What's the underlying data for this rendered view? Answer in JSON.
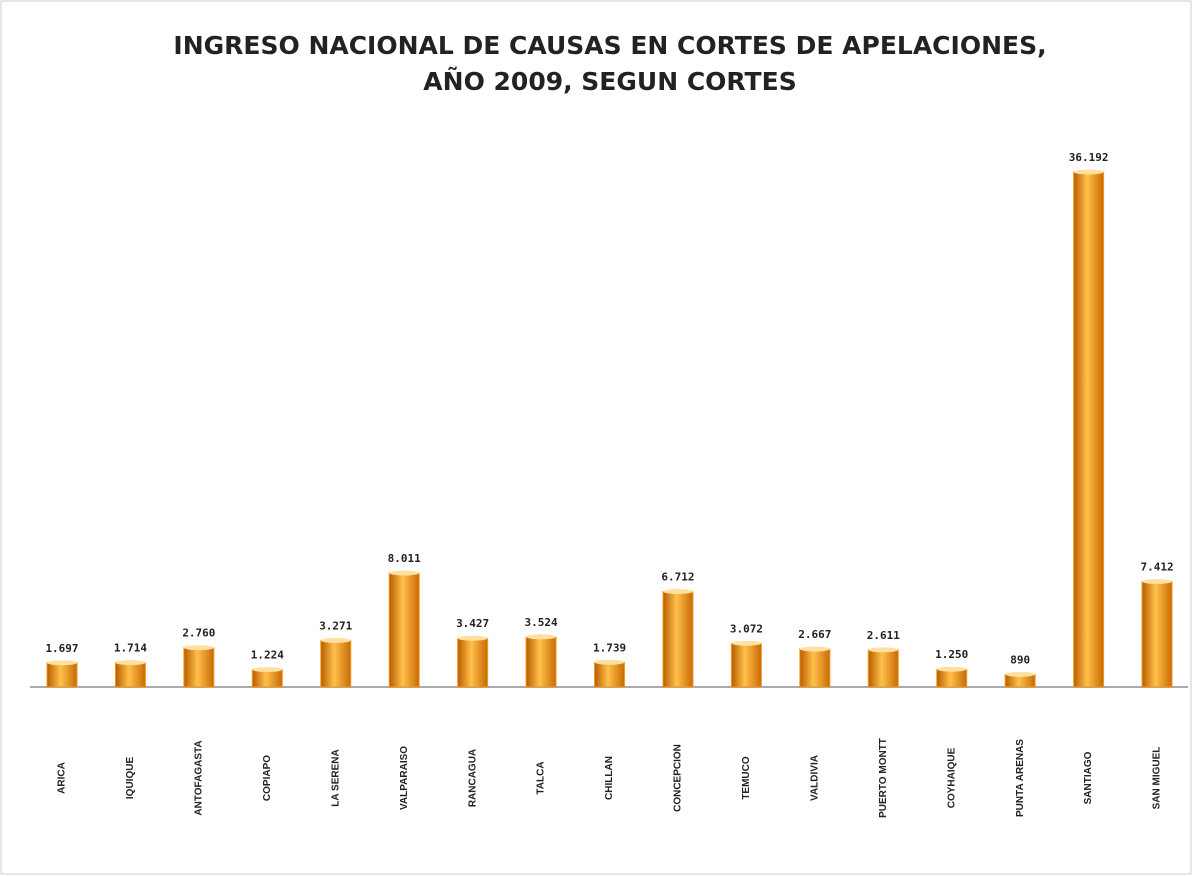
{
  "chart_data": {
    "type": "bar",
    "title": [
      "INGRESO NACIONAL DE CAUSAS EN CORTES DE APELACIONES,",
      "AÑO 2009, SEGUN CORTES"
    ],
    "categories": [
      "ARICA",
      "IQUIQUE",
      "ANTOFAGASTA",
      "COPIAPO",
      "LA SERENA",
      "VALPARAISO",
      "RANCAGUA",
      "TALCA",
      "CHILLAN",
      "CONCEPCION",
      "TEMUCO",
      "VALDIVIA",
      "PUERTO MONTT",
      "COYHAIQUE",
      "PUNTA ARENAS",
      "SANTIAGO",
      "SAN MIGUEL"
    ],
    "values": [
      1697,
      1714,
      2760,
      1224,
      3271,
      8011,
      3427,
      3524,
      1739,
      6712,
      3072,
      2667,
      2611,
      1250,
      890,
      36192,
      7412
    ],
    "value_labels": [
      "1.697",
      "1.714",
      "2.760",
      "1.224",
      "3.271",
      "8.011",
      "3.427",
      "3.524",
      "1.739",
      "6.712",
      "3.072",
      "2.667",
      "2.611",
      "1.250",
      "890",
      "36.192",
      "7.412"
    ],
    "color": "#f39a1e"
  }
}
